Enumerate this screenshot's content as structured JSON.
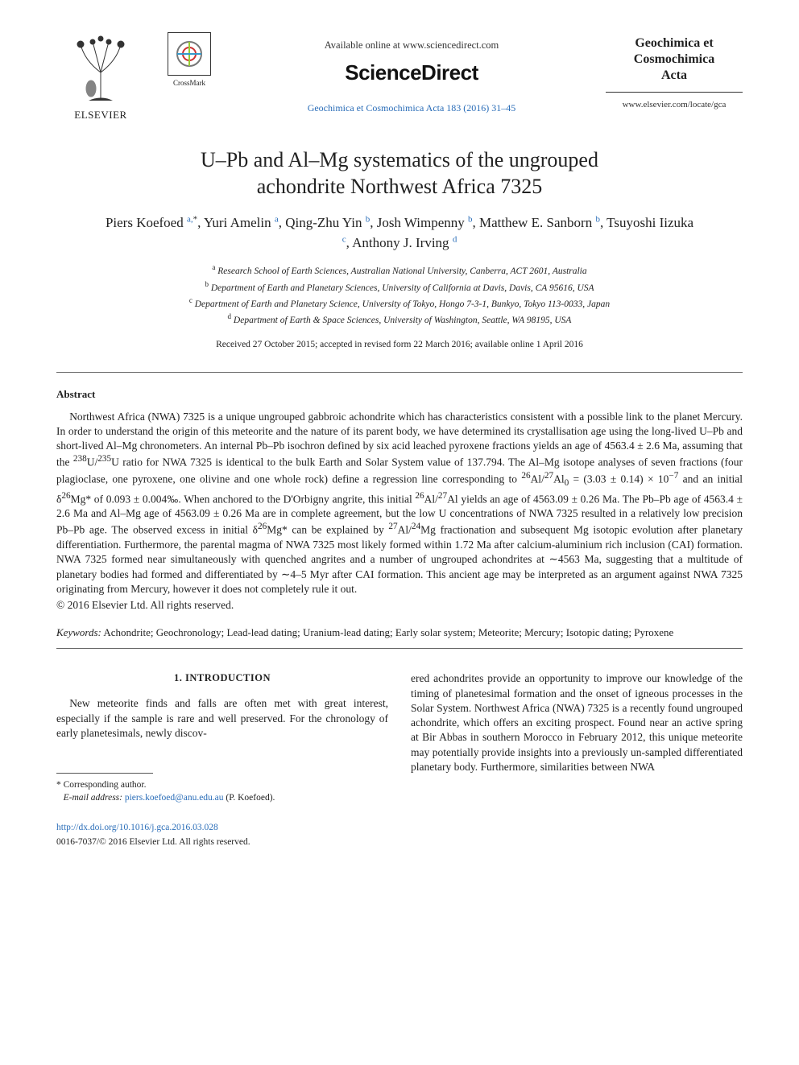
{
  "header": {
    "elsevier_label": "ELSEVIER",
    "crossmark_label": "CrossMark",
    "available_online": "Available online at www.sciencedirect.com",
    "brand": "ScienceDirect",
    "journal_ref": "Geochimica et Cosmochimica Acta 183 (2016) 31–45",
    "gca_title_line1": "Geochimica et",
    "gca_title_line2": "Cosmochimica",
    "gca_title_line3": "Acta",
    "gca_url": "www.elsevier.com/locate/gca"
  },
  "title_line1": "U–Pb and Al–Mg systematics of the ungrouped",
  "title_line2": "achondrite Northwest Africa 7325",
  "authors_html": "Piers Koefoed <sup class='sup-link'>a,</sup><sup>*</sup>, Yuri Amelin <sup class='sup-link'>a</sup>, Qing-Zhu Yin <sup class='sup-link'>b</sup>, Josh Wimpenny <sup class='sup-link'>b</sup>, Matthew E. Sanborn <sup class='sup-link'>b</sup>, Tsuyoshi Iizuka <sup class='sup-link'>c</sup>, Anthony J. Irving <sup class='sup-link'>d</sup>",
  "affiliations": {
    "a": "Research School of Earth Sciences, Australian National University, Canberra, ACT 2601, Australia",
    "b": "Department of Earth and Planetary Sciences, University of California at Davis, Davis, CA 95616, USA",
    "c": "Department of Earth and Planetary Science, University of Tokyo, Hongo 7-3-1, Bunkyo, Tokyo 113-0033, Japan",
    "d": "Department of Earth & Space Sciences, University of Washington, Seattle, WA 98195, USA"
  },
  "dates": "Received 27 October 2015; accepted in revised form 22 March 2016; available online 1 April 2016",
  "abstract_label": "Abstract",
  "abstract_html": "Northwest Africa (NWA) 7325 is a unique ungrouped gabbroic achondrite which has characteristics consistent with a possible link to the planet Mercury. In order to understand the origin of this meteorite and the nature of its parent body, we have determined its crystallisation age using the long-lived U–Pb and short-lived Al–Mg chronometers. An internal Pb–Pb isochron defined by six acid leached pyroxene fractions yields an age of 4563.4 ± 2.6 Ma, assuming that the <sup>238</sup>U/<sup>235</sup>U ratio for NWA 7325 is identical to the bulk Earth and Solar System value of 137.794. The Al–Mg isotope analyses of seven fractions (four plagioclase, one pyroxene, one olivine and one whole rock) define a regression line corresponding to <sup>26</sup>Al/<sup>27</sup>Al<sub>0</sub> = (3.03 ± 0.14) × 10<sup>−7</sup> and an initial δ<sup>26</sup>Mg* of 0.093 ± 0.004‰. When anchored to the D'Orbigny angrite, this initial <sup>26</sup>Al/<sup>27</sup>Al yields an age of 4563.09 ± 0.26 Ma. The Pb–Pb age of 4563.4 ± 2.6 Ma and Al–Mg age of 4563.09 ± 0.26 Ma are in complete agreement, but the low U concentrations of NWA 7325 resulted in a relatively low precision Pb–Pb age. The observed excess in initial δ<sup>26</sup>Mg* can be explained by <sup>27</sup>Al/<sup>24</sup>Mg fractionation and subsequent Mg isotopic evolution after planetary differentiation. Furthermore, the parental magma of NWA 7325 most likely formed within 1.72 Ma after calcium-aluminium rich inclusion (CAI) formation. NWA 7325 formed near simultaneously with quenched angrites and a number of ungrouped achondrites at ∼4563 Ma, suggesting that a multitude of planetary bodies had formed and differentiated by ∼4–5 Myr after CAI formation. This ancient age may be interpreted as an argument against NWA 7325 originating from Mercury, however it does not completely rule it out.",
  "copyright": "© 2016 Elsevier Ltd. All rights reserved.",
  "keywords_label": "Keywords:",
  "keywords": " Achondrite; Geochronology; Lead-lead dating; Uranium-lead dating; Early solar system; Meteorite; Mercury; Isotopic dating; Pyroxene",
  "section_head": "1. INTRODUCTION",
  "col1_p1": "New meteorite finds and falls are often met with great interest, especially if the sample is rare and well preserved. For the chronology of early planetesimals, newly discov-",
  "col2_p1": "ered achondrites provide an opportunity to improve our knowledge of the timing of planetesimal formation and the onset of igneous processes in the Solar System. Northwest Africa (NWA) 7325 is a recently found ungrouped achondrite, which offers an exciting prospect. Found near an active spring at Bir Abbas in southern Morocco in February 2012, this unique meteorite may potentially provide insights into a previously un-sampled differentiated planetary body. Furthermore, similarities between NWA",
  "footnote_corresponding": "* Corresponding author.",
  "footnote_email_label": "E-mail address:",
  "footnote_email": "piers.koefoed@anu.edu.au",
  "footnote_email_suffix": " (P. Koefoed).",
  "doi": "http://dx.doi.org/10.1016/j.gca.2016.03.028",
  "issn": "0016-7037/© 2016 Elsevier Ltd. All rights reserved.",
  "colors": {
    "link": "#2a6db8",
    "text": "#222222",
    "rule": "#666666"
  }
}
